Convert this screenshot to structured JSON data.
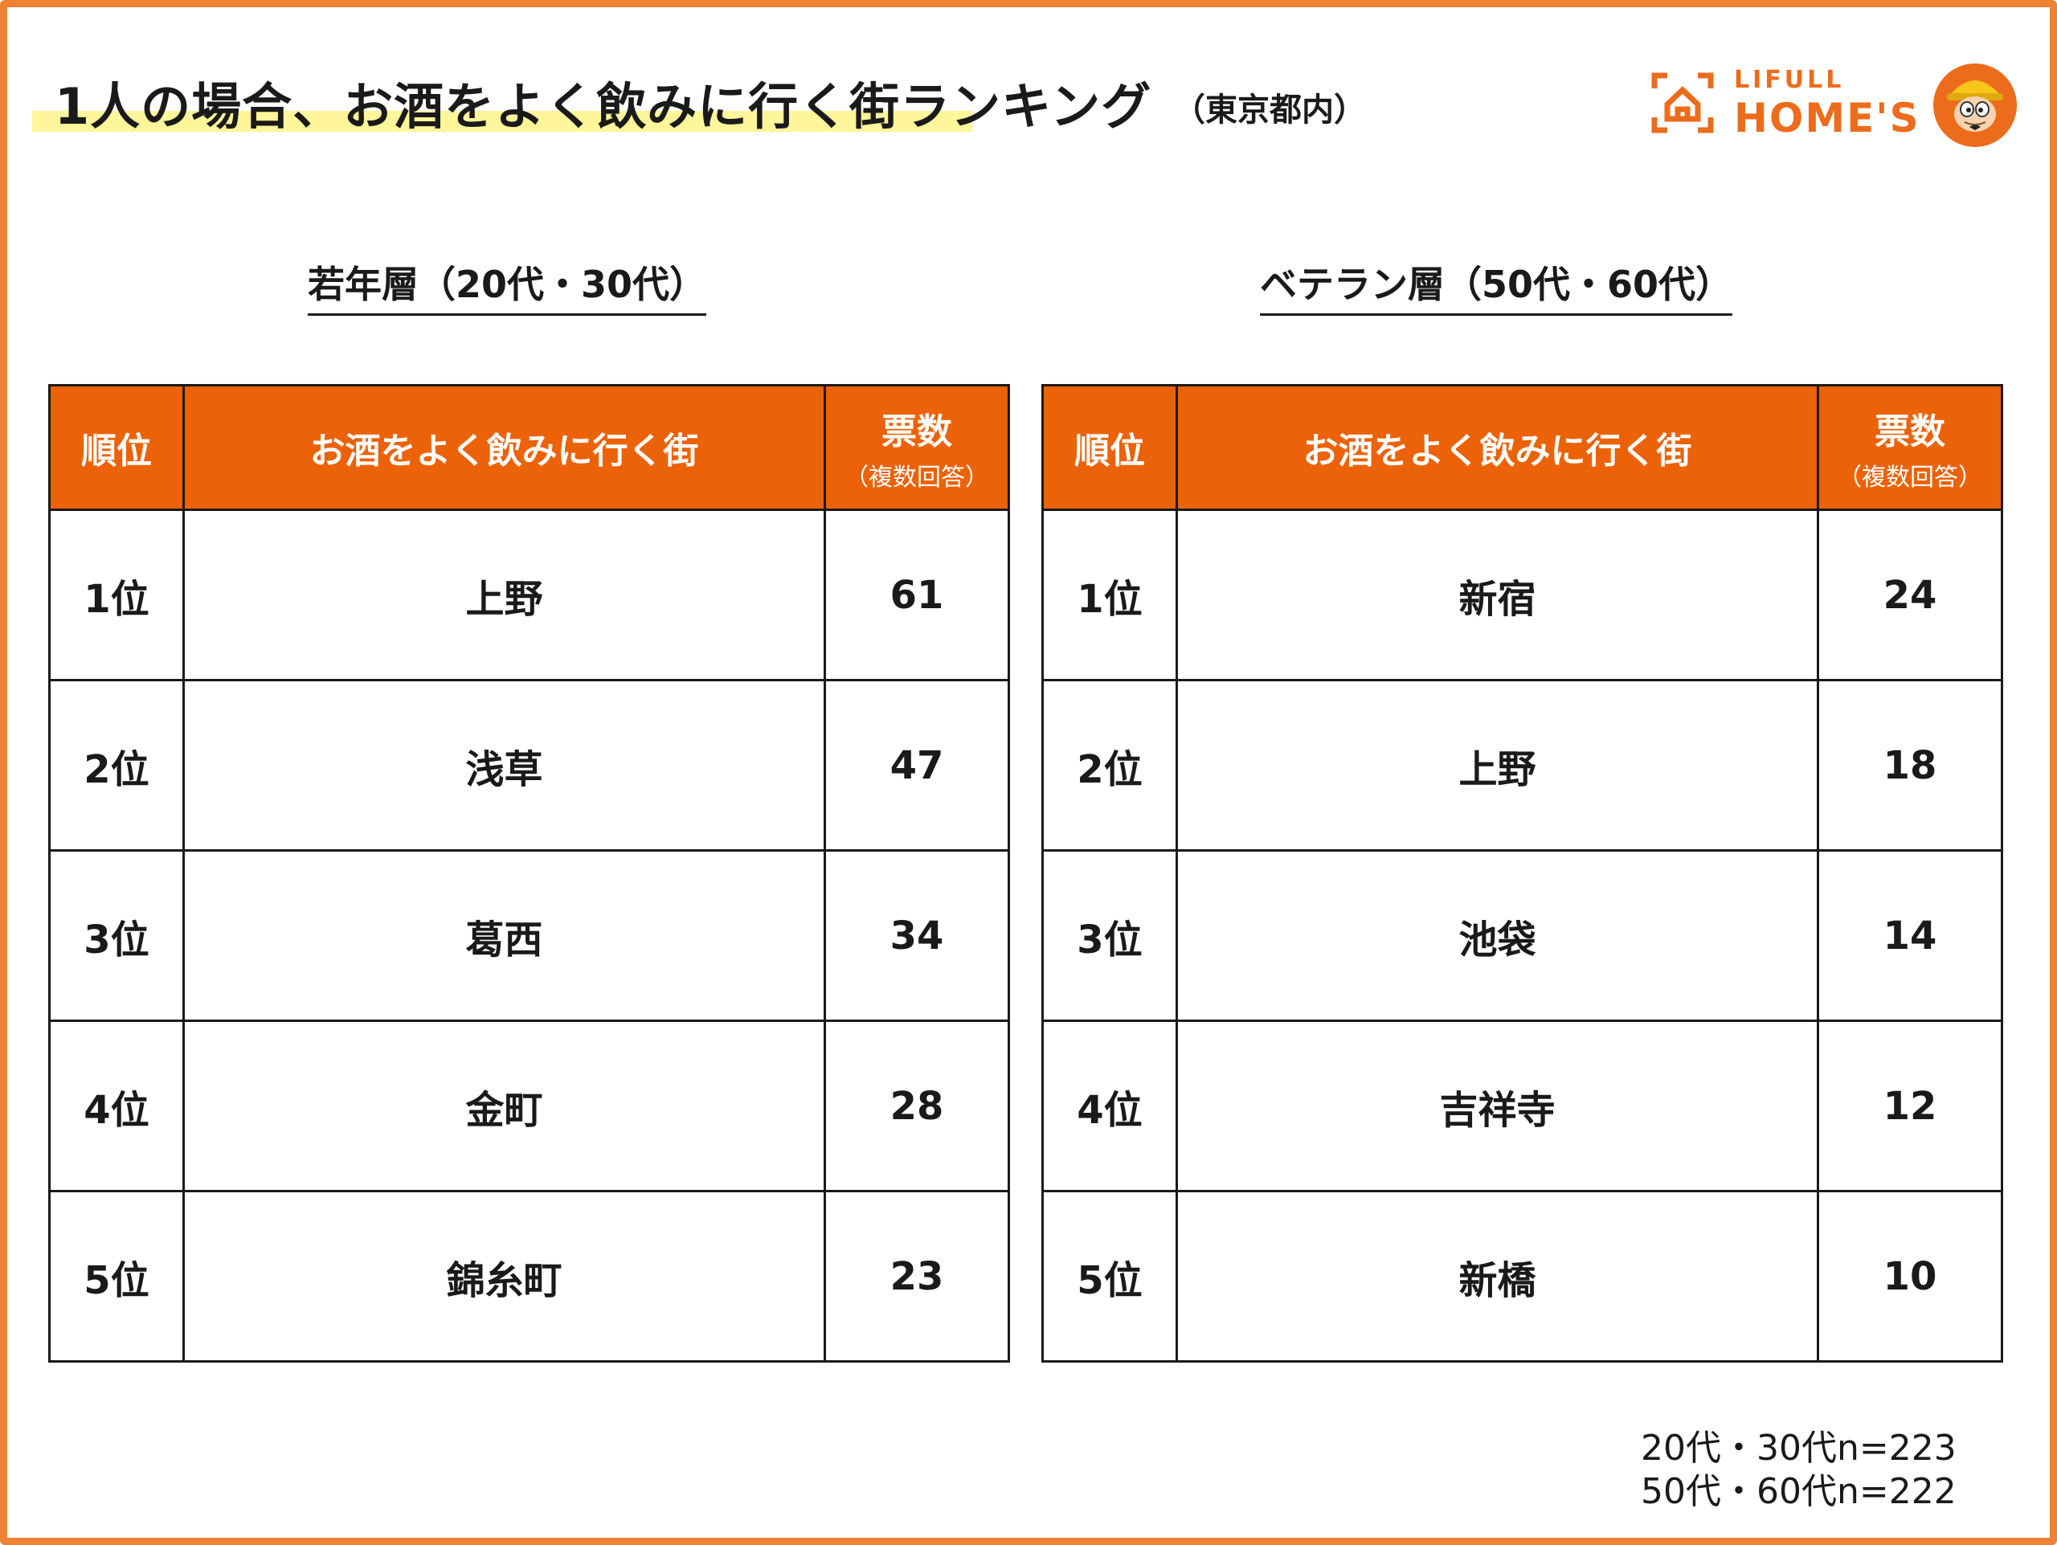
{
  "title": "1人の場合、お酒をよく飲みに行く街ランキング",
  "title_sub": "（東京都内）",
  "logo": {
    "small": "LIFULL",
    "big": "HOME'S",
    "icon": "house-icon",
    "mascot": "mascot-icon",
    "color": "#ec6c1c"
  },
  "accent_color": "#ec6208",
  "highlight_color": "#fff59a",
  "chart_data": [
    {
      "type": "table",
      "title": "若年層（20代・30代）",
      "columns": [
        "順位",
        "お酒をよく飲みに行く街",
        "票数",
        "（複数回答）"
      ],
      "rows": [
        {
          "rank": "1位",
          "town": "上野",
          "votes": "61"
        },
        {
          "rank": "2位",
          "town": "浅草",
          "votes": "47"
        },
        {
          "rank": "3位",
          "town": "葛西",
          "votes": "34"
        },
        {
          "rank": "4位",
          "town": "金町",
          "votes": "28"
        },
        {
          "rank": "5位",
          "town": "錦糸町",
          "votes": "23"
        }
      ]
    },
    {
      "type": "table",
      "title": "ベテラン層（50代・60代）",
      "columns": [
        "順位",
        "お酒をよく飲みに行く街",
        "票数",
        "（複数回答）"
      ],
      "rows": [
        {
          "rank": "1位",
          "town": "新宿",
          "votes": "24"
        },
        {
          "rank": "2位",
          "town": "上野",
          "votes": "18"
        },
        {
          "rank": "3位",
          "town": "池袋",
          "votes": "14"
        },
        {
          "rank": "4位",
          "town": "吉祥寺",
          "votes": "12"
        },
        {
          "rank": "5位",
          "town": "新橋",
          "votes": "10"
        }
      ]
    }
  ],
  "notes": [
    "20代・30代n=223",
    "50代・60代n=222"
  ]
}
